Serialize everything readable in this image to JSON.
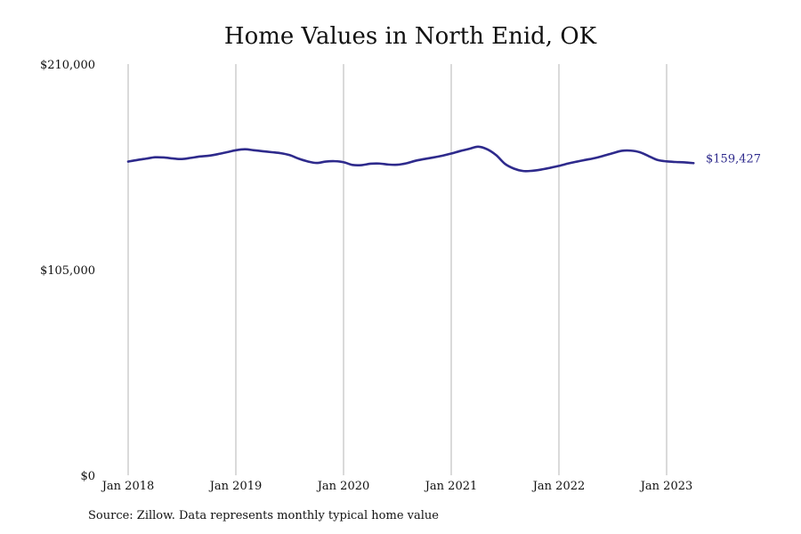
{
  "chart_data": {
    "type": "line",
    "title": "Home Values in North Enid, OK",
    "xlabel": "",
    "ylabel": "",
    "ylim": [
      0,
      210000
    ],
    "y_ticks": [
      0,
      105000,
      210000
    ],
    "y_tick_labels": [
      "$0",
      "$105,000",
      "$210,000"
    ],
    "x_ticks": [
      "2018-01",
      "2019-01",
      "2020-01",
      "2021-01",
      "2022-01",
      "2023-01"
    ],
    "x_tick_labels": [
      "Jan 2018",
      "Jan 2019",
      "Jan 2020",
      "Jan 2021",
      "Jan 2022",
      "Jan 2023"
    ],
    "grid": "vertical",
    "color": "#2e2a8c",
    "end_label": "$159,427",
    "series": [
      {
        "x": [
          "2018-01",
          "2018-02",
          "2018-03",
          "2018-04",
          "2018-05",
          "2018-06",
          "2018-07",
          "2018-08",
          "2018-09",
          "2018-10",
          "2018-11",
          "2018-12",
          "2019-01",
          "2019-02",
          "2019-03",
          "2019-04",
          "2019-05",
          "2019-06",
          "2019-07",
          "2019-08",
          "2019-09",
          "2019-10",
          "2019-11",
          "2019-12",
          "2020-01",
          "2020-02",
          "2020-03",
          "2020-04",
          "2020-05",
          "2020-06",
          "2020-07",
          "2020-08",
          "2020-09",
          "2020-10",
          "2020-11",
          "2020-12",
          "2021-01",
          "2021-02",
          "2021-03",
          "2021-04",
          "2021-05",
          "2021-06",
          "2021-07",
          "2021-08",
          "2021-09",
          "2021-10",
          "2021-11",
          "2021-12",
          "2022-01",
          "2022-02",
          "2022-03",
          "2022-04",
          "2022-05",
          "2022-06",
          "2022-07",
          "2022-08",
          "2022-09",
          "2022-10",
          "2022-11",
          "2022-12",
          "2023-01",
          "2023-02",
          "2023-03",
          "2023-04"
        ],
        "values": [
          160200,
          161000,
          161700,
          162400,
          162300,
          161800,
          161500,
          162100,
          162800,
          163200,
          164000,
          165000,
          166000,
          166500,
          166000,
          165500,
          165000,
          164500,
          163500,
          161700,
          160300,
          159500,
          160200,
          160400,
          159900,
          158500,
          158400,
          159100,
          159200,
          158700,
          158600,
          159300,
          160600,
          161500,
          162300,
          163200,
          164300,
          165600,
          166700,
          167800,
          166500,
          163500,
          159000,
          156600,
          155400,
          155500,
          156100,
          157000,
          158000,
          159200,
          160200,
          161100,
          162000,
          163200,
          164500,
          165700,
          165800,
          165000,
          163000,
          161000,
          160300,
          160000,
          159800,
          159427
        ]
      }
    ]
  },
  "source": "Source: Zillow. Data represents monthly typical home value"
}
